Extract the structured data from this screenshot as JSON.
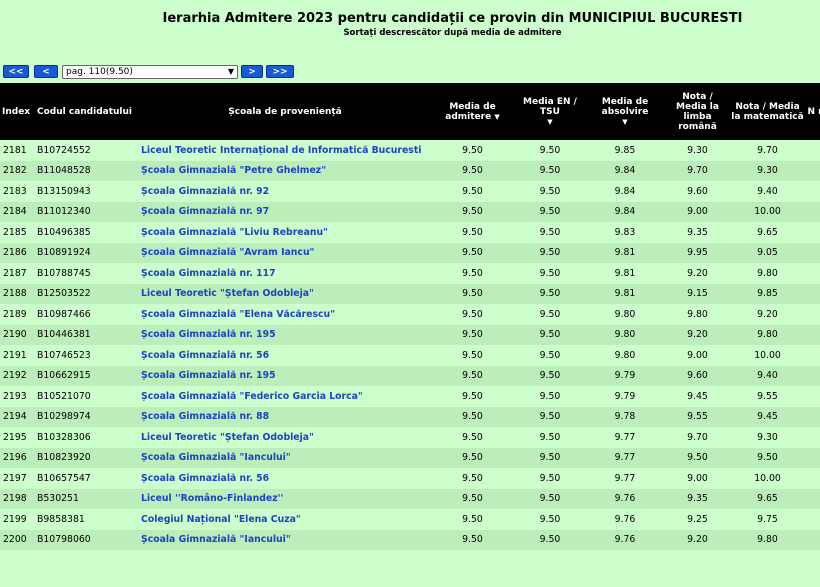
{
  "header": {
    "title": "Ierarhia Admitere 2023 pentru candidații ce provin din MUNICIPIUL BUCURESTI",
    "subtitle": "Sortați descrescător după media de admitere"
  },
  "pager": {
    "first_label": "<<",
    "prev_label": "<",
    "selected_page": "pag. 110(9.50)",
    "next_label": ">",
    "last_label": ">>"
  },
  "columns": {
    "index": "Index",
    "code": "Codul candidatului",
    "school": "Școala de proveniență",
    "admission": "Media de admitere",
    "en": "Media EN / TSU",
    "graduation": "Media de absolvire",
    "romanian": "Nota / Media la limba română",
    "math": "Nota / Media la matematică",
    "extra": "N m"
  },
  "rows": [
    {
      "index": "2181",
      "code": "B10724552",
      "school": "Liceul Teoretic Internațional de Informatică Bucuresti",
      "admission": "9.50",
      "en": "9.50",
      "graduation": "9.85",
      "romanian": "9.30",
      "math": "9.70"
    },
    {
      "index": "2182",
      "code": "B11048528",
      "school": "Școala Gimnazială \"Petre Ghelmez\"",
      "admission": "9.50",
      "en": "9.50",
      "graduation": "9.84",
      "romanian": "9.70",
      "math": "9.30"
    },
    {
      "index": "2183",
      "code": "B13150943",
      "school": "Școala Gimnazială nr. 92",
      "admission": "9.50",
      "en": "9.50",
      "graduation": "9.84",
      "romanian": "9.60",
      "math": "9.40"
    },
    {
      "index": "2184",
      "code": "B11012340",
      "school": "Școala Gimnazială nr. 97",
      "admission": "9.50",
      "en": "9.50",
      "graduation": "9.84",
      "romanian": "9.00",
      "math": "10.00"
    },
    {
      "index": "2185",
      "code": "B10496385",
      "school": "Școala Gimnazială \"Liviu Rebreanu\"",
      "admission": "9.50",
      "en": "9.50",
      "graduation": "9.83",
      "romanian": "9.35",
      "math": "9.65"
    },
    {
      "index": "2186",
      "code": "B10891924",
      "school": "Școala Gimnazială \"Avram Iancu\"",
      "admission": "9.50",
      "en": "9.50",
      "graduation": "9.81",
      "romanian": "9.95",
      "math": "9.05"
    },
    {
      "index": "2187",
      "code": "B10788745",
      "school": "Școala Gimnazială nr. 117",
      "admission": "9.50",
      "en": "9.50",
      "graduation": "9.81",
      "romanian": "9.20",
      "math": "9.80"
    },
    {
      "index": "2188",
      "code": "B12503522",
      "school": "Liceul Teoretic \"Ștefan Odobleja\"",
      "admission": "9.50",
      "en": "9.50",
      "graduation": "9.81",
      "romanian": "9.15",
      "math": "9.85"
    },
    {
      "index": "2189",
      "code": "B10987466",
      "school": "Școala Gimnazială \"Elena Văcărescu\"",
      "admission": "9.50",
      "en": "9.50",
      "graduation": "9.80",
      "romanian": "9.80",
      "math": "9.20"
    },
    {
      "index": "2190",
      "code": "B10446381",
      "school": "Școala Gimnazială nr. 195",
      "admission": "9.50",
      "en": "9.50",
      "graduation": "9.80",
      "romanian": "9.20",
      "math": "9.80"
    },
    {
      "index": "2191",
      "code": "B10746523",
      "school": "Școala Gimnazială nr. 56",
      "admission": "9.50",
      "en": "9.50",
      "graduation": "9.80",
      "romanian": "9.00",
      "math": "10.00"
    },
    {
      "index": "2192",
      "code": "B10662915",
      "school": "Școala Gimnazială nr. 195",
      "admission": "9.50",
      "en": "9.50",
      "graduation": "9.79",
      "romanian": "9.60",
      "math": "9.40"
    },
    {
      "index": "2193",
      "code": "B10521070",
      "school": "Școala Gimnazială \"Federico Garcia Lorca\"",
      "admission": "9.50",
      "en": "9.50",
      "graduation": "9.79",
      "romanian": "9.45",
      "math": "9.55"
    },
    {
      "index": "2194",
      "code": "B10298974",
      "school": "Școala Gimnazială nr. 88",
      "admission": "9.50",
      "en": "9.50",
      "graduation": "9.78",
      "romanian": "9.55",
      "math": "9.45"
    },
    {
      "index": "2195",
      "code": "B10328306",
      "school": "Liceul Teoretic \"Ștefan Odobleja\"",
      "admission": "9.50",
      "en": "9.50",
      "graduation": "9.77",
      "romanian": "9.70",
      "math": "9.30"
    },
    {
      "index": "2196",
      "code": "B10823920",
      "school": "Școala Gimnazială \"Iancului\"",
      "admission": "9.50",
      "en": "9.50",
      "graduation": "9.77",
      "romanian": "9.50",
      "math": "9.50"
    },
    {
      "index": "2197",
      "code": "B10657547",
      "school": "Școala Gimnazială nr. 56",
      "admission": "9.50",
      "en": "9.50",
      "graduation": "9.77",
      "romanian": "9.00",
      "math": "10.00"
    },
    {
      "index": "2198",
      "code": "B530251",
      "school": "Liceul ''Româno-Finlandez''",
      "admission": "9.50",
      "en": "9.50",
      "graduation": "9.76",
      "romanian": "9.35",
      "math": "9.65"
    },
    {
      "index": "2199",
      "code": "B9858381",
      "school": "Colegiul Național \"Elena Cuza\"",
      "admission": "9.50",
      "en": "9.50",
      "graduation": "9.76",
      "romanian": "9.25",
      "math": "9.75"
    },
    {
      "index": "2200",
      "code": "B10798060",
      "school": "Școala Gimnazială \"Iancului\"",
      "admission": "9.50",
      "en": "9.50",
      "graduation": "9.76",
      "romanian": "9.20",
      "math": "9.80"
    }
  ]
}
